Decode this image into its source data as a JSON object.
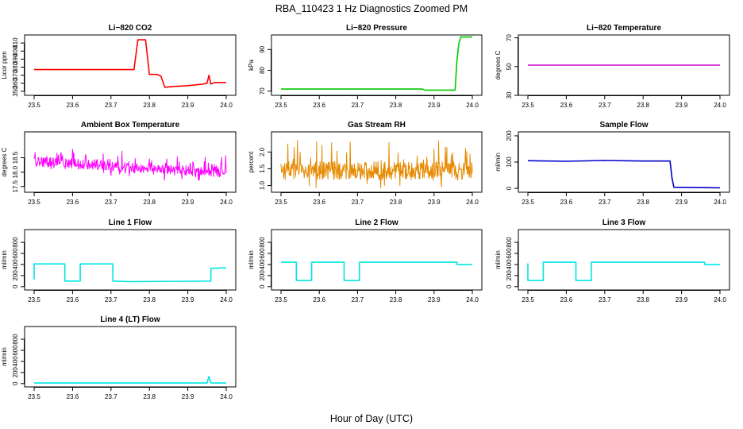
{
  "figure": {
    "title": "RBA_110423  1 Hz Diagnostics Zoomed PM",
    "xlabel": "Hour of Day (UTC)"
  },
  "chart_data": [
    {
      "type": "line",
      "title": "Li−820 CO2",
      "ylabel": "Licor ppm",
      "xlim": [
        23.5,
        24.0
      ],
      "ylim": [
        345,
        420
      ],
      "xticks": [
        "23.5",
        "23.6",
        "23.7",
        "23.8",
        "23.9",
        "24.0"
      ],
      "yticks": [
        "350",
        "360",
        "370",
        "380",
        "390",
        "400",
        "410"
      ],
      "color": "#ff0000",
      "series": [
        {
          "x": [
            23.5,
            23.6,
            23.7,
            23.76,
            23.77,
            23.79,
            23.8,
            23.82,
            23.83,
            23.84,
            23.86,
            23.9,
            23.94,
            23.95,
            23.955,
            23.96,
            23.97,
            24.0
          ],
          "y": [
            377,
            377,
            377,
            377,
            414,
            414,
            371,
            371,
            369,
            355,
            356,
            357,
            359,
            360,
            370,
            359,
            361,
            361
          ]
        }
      ]
    },
    {
      "type": "line",
      "title": "Li−820 Pressure",
      "ylabel": "kPa",
      "xlim": [
        23.5,
        24.0
      ],
      "ylim": [
        68,
        97
      ],
      "xticks": [
        "23.5",
        "23.6",
        "23.7",
        "23.8",
        "23.9",
        "24.0"
      ],
      "yticks": [
        "70",
        "80",
        "90"
      ],
      "color": "#00cc00",
      "series": [
        {
          "x": [
            23.5,
            23.7,
            23.87,
            23.875,
            23.955,
            23.96,
            23.965,
            23.97,
            24.0
          ],
          "y": [
            71,
            71,
            71,
            70.5,
            70.5,
            85,
            93,
            96,
            96
          ]
        }
      ]
    },
    {
      "type": "line",
      "title": "Li−820 Temperature",
      "ylabel": "degrees C",
      "xlim": [
        23.5,
        24.0
      ],
      "ylim": [
        30,
        72
      ],
      "xticks": [
        "23.5",
        "23.6",
        "23.7",
        "23.8",
        "23.9",
        "24.0"
      ],
      "yticks": [
        "30",
        "50",
        "70"
      ],
      "color": "#cc00cc",
      "series": [
        {
          "x": [
            23.5,
            24.0
          ],
          "y": [
            51,
            51
          ]
        }
      ]
    },
    {
      "type": "line",
      "title": "Ambient Box Temperature",
      "ylabel": "degrees C",
      "xlim": [
        23.5,
        24.0
      ],
      "ylim": [
        17.3,
        19.4
      ],
      "xticks": [
        "23.5",
        "23.6",
        "23.7",
        "23.8",
        "23.9",
        "24.0"
      ],
      "yticks": [
        "17.5",
        "18.0",
        "18.5"
      ],
      "color": "#ff00ff",
      "noise": true,
      "series": [
        {
          "x": [
            23.5,
            23.6,
            23.7,
            23.8,
            23.9,
            24.0
          ],
          "y": [
            18.35,
            18.3,
            18.2,
            18.1,
            18.05,
            18.0
          ]
        }
      ],
      "noise_amplitude": 0.35
    },
    {
      "type": "line",
      "title": "Gas Stream RH",
      "ylabel": "percent",
      "xlim": [
        23.5,
        24.0
      ],
      "ylim": [
        0.8,
        2.6
      ],
      "xticks": [
        "23.5",
        "23.6",
        "23.7",
        "23.8",
        "23.9",
        "24.0"
      ],
      "yticks": [
        "1.0",
        "1.5",
        "2.0"
      ],
      "color": "#e68a00",
      "noise": true,
      "series": [
        {
          "x": [
            23.5,
            24.0
          ],
          "y": [
            1.45,
            1.45
          ]
        }
      ],
      "noise_amplitude": 0.55
    },
    {
      "type": "line",
      "title": "Sample Flow",
      "ylabel": "ml/min",
      "xlim": [
        23.5,
        24.0
      ],
      "ylim": [
        -15,
        215
      ],
      "xticks": [
        "23.5",
        "23.6",
        "23.7",
        "23.8",
        "23.9",
        "24.0"
      ],
      "yticks": [
        "0",
        "100",
        "200"
      ],
      "color": "#0000cc",
      "series": [
        {
          "x": [
            23.5,
            23.6,
            23.7,
            23.8,
            23.87,
            23.875,
            23.88,
            24.0
          ],
          "y": [
            105,
            103,
            106,
            104,
            104,
            40,
            4,
            2
          ]
        }
      ]
    },
    {
      "type": "line",
      "title": "Line 1 Flow",
      "ylabel": "ml/min",
      "xlim": [
        23.5,
        24.0
      ],
      "ylim": [
        -60,
        1030
      ],
      "xticks": [
        "23.5",
        "23.6",
        "23.7",
        "23.8",
        "23.9",
        "24.0"
      ],
      "yticks": [
        "0",
        "200",
        "400",
        "600",
        "800"
      ],
      "color": "#00e5e5",
      "series": [
        {
          "x": [
            23.5,
            23.5,
            23.58,
            23.58,
            23.62,
            23.62,
            23.705,
            23.705,
            23.75,
            23.96,
            23.96,
            24.0
          ],
          "y": [
            130,
            410,
            410,
            100,
            100,
            410,
            410,
            100,
            90,
            100,
            330,
            340
          ]
        }
      ]
    },
    {
      "type": "line",
      "title": "Line 2 Flow",
      "ylabel": "ml/min",
      "xlim": [
        23.5,
        24.0
      ],
      "ylim": [
        -60,
        1030
      ],
      "xticks": [
        "23.5",
        "23.6",
        "23.7",
        "23.8",
        "23.9",
        "24.0"
      ],
      "yticks": [
        "0",
        "200",
        "400",
        "600",
        "800"
      ],
      "color": "#00e5e5",
      "series": [
        {
          "x": [
            23.5,
            23.54,
            23.54,
            23.58,
            23.58,
            23.665,
            23.665,
            23.705,
            23.705,
            23.96,
            23.96,
            24.0
          ],
          "y": [
            440,
            440,
            110,
            110,
            440,
            440,
            110,
            110,
            440,
            440,
            400,
            400
          ]
        }
      ]
    },
    {
      "type": "line",
      "title": "Line 3 Flow",
      "ylabel": "ml/min",
      "xlim": [
        23.5,
        24.0
      ],
      "ylim": [
        -60,
        1030
      ],
      "xticks": [
        "23.5",
        "23.6",
        "23.7",
        "23.8",
        "23.9",
        "24.0"
      ],
      "yticks": [
        "0",
        "200",
        "400",
        "600",
        "800"
      ],
      "color": "#00e5e5",
      "series": [
        {
          "x": [
            23.5,
            23.5,
            23.54,
            23.54,
            23.625,
            23.625,
            23.665,
            23.665,
            23.96,
            23.96,
            24.0
          ],
          "y": [
            420,
            110,
            110,
            440,
            440,
            110,
            110,
            440,
            440,
            400,
            400
          ]
        }
      ]
    },
    {
      "type": "line",
      "title": "Line 4 (LT) Flow",
      "ylabel": "ml/min",
      "xlim": [
        23.5,
        24.0
      ],
      "ylim": [
        -60,
        1030
      ],
      "xticks": [
        "23.5",
        "23.6",
        "23.7",
        "23.8",
        "23.9",
        "24.0"
      ],
      "yticks": [
        "0",
        "200",
        "400",
        "600",
        "800"
      ],
      "color": "#00e5e5",
      "series": [
        {
          "x": [
            23.5,
            23.95,
            23.955,
            23.96,
            23.965,
            24.0
          ],
          "y": [
            10,
            10,
            130,
            10,
            10,
            10
          ]
        }
      ]
    }
  ]
}
